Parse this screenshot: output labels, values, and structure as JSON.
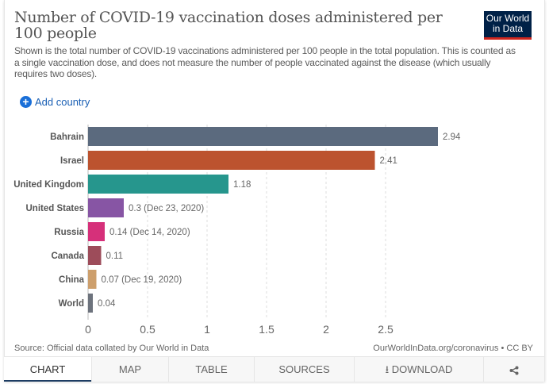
{
  "header": {
    "title": "Number of COVID-19 vaccination doses administered per 100 people",
    "subtitle": "Shown is the total number of COVID-19 vaccinations administered per 100 people in the total population. This is counted as a single vaccination dose, and does not measure the number of people vaccinated against the disease (which usually requires two doses).",
    "logo_line1": "Our World",
    "logo_line2": "in Data"
  },
  "controls": {
    "add_country_icon": "plus-circle-icon",
    "add_country_label": "Add country"
  },
  "chart_data": {
    "type": "bar",
    "orientation": "horizontal",
    "title": "Number of COVID-19 vaccination doses administered per 100 people",
    "categories": [
      "Bahrain",
      "Israel",
      "United Kingdom",
      "United States",
      "Russia",
      "Canada",
      "China",
      "World"
    ],
    "values": [
      2.94,
      2.41,
      1.18,
      0.3,
      0.14,
      0.11,
      0.07,
      0.04
    ],
    "value_labels": [
      "2.94",
      "2.41",
      "1.18",
      "0.3 (Dec 23, 2020)",
      "0.14 (Dec 14, 2020)",
      "0.11",
      "0.07 (Dec 19, 2020)",
      "0.04"
    ],
    "colors": [
      "#5b6a7e",
      "#bc532f",
      "#26968d",
      "#8755a4",
      "#d6307a",
      "#9d4c5a",
      "#cd9f6c",
      "#6d737d"
    ],
    "xticks": [
      0,
      0.5,
      1,
      1.5,
      2,
      2.5
    ],
    "xtick_labels": [
      "0",
      "0.5",
      "1",
      "1.5",
      "2",
      "2.5"
    ],
    "xlim": [
      0,
      3
    ],
    "xlabel": "",
    "ylabel": "",
    "grid": "vertical-dashed"
  },
  "footer": {
    "source": "Source: Official data collated by Our World in Data",
    "credit": "OurWorldInData.org/coronavirus • CC BY"
  },
  "tabs": [
    {
      "label": "CHART",
      "active": true
    },
    {
      "label": "MAP"
    },
    {
      "label": "TABLE"
    },
    {
      "label": "SOURCES"
    },
    {
      "label": "⭳ DOWNLOAD",
      "icon": "download-icon"
    },
    {
      "label": "",
      "icon": "share-icon"
    }
  ]
}
